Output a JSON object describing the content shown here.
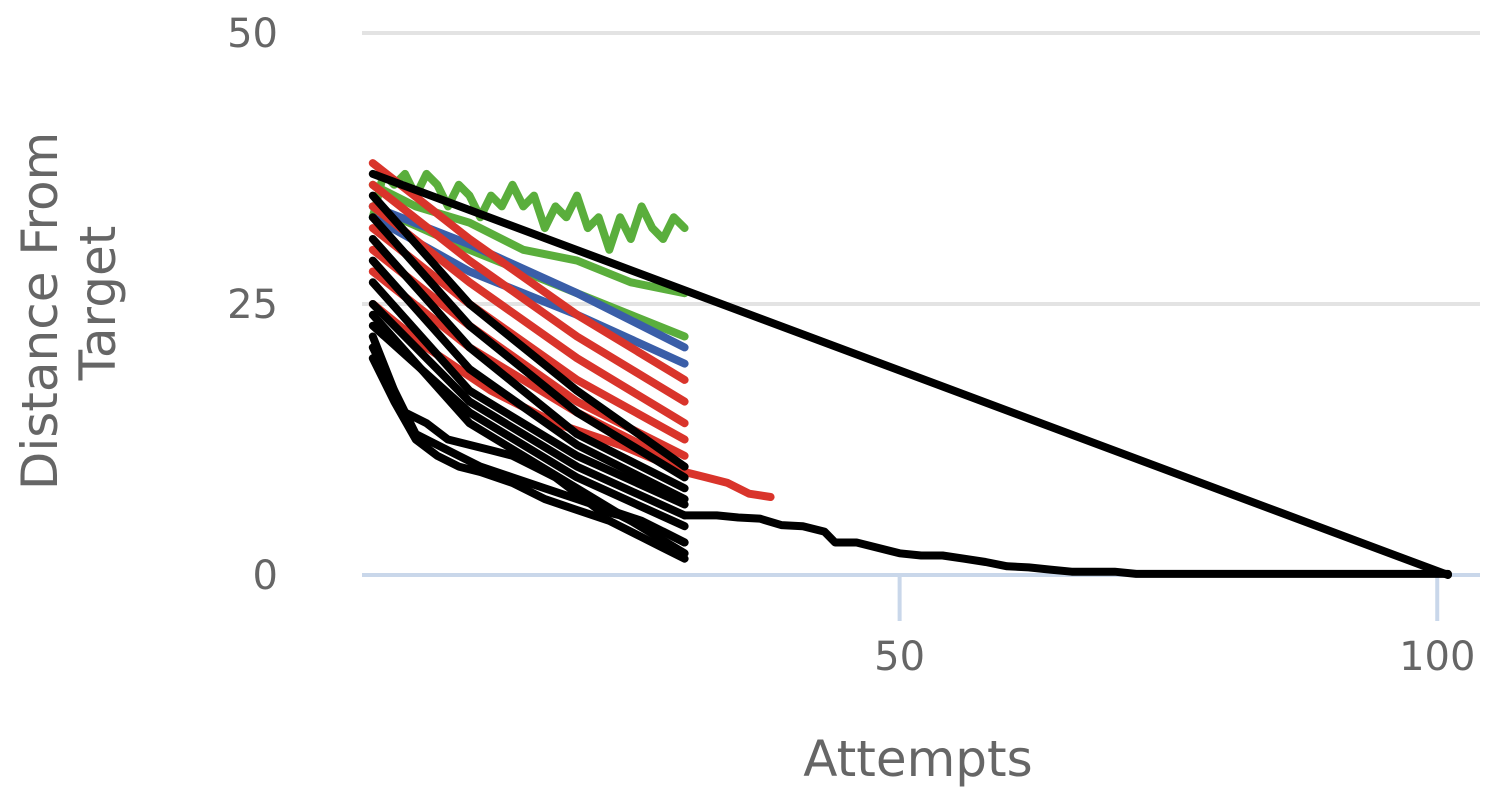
{
  "chart_data": {
    "type": "line",
    "title": "",
    "xlabel": "Attempts",
    "ylabel_lines": [
      "Distance From",
      "Target"
    ],
    "xlim": [
      0,
      101
    ],
    "ylim": [
      0,
      50
    ],
    "x_ticks": [
      50,
      100
    ],
    "x_tick_labels": [
      "50",
      "100"
    ],
    "y_ticks": [
      0,
      25,
      50
    ],
    "y_tick_labels": [
      "0",
      "25",
      "50"
    ],
    "grid": "horizontal",
    "legend": "none",
    "colors": {
      "green": "#5aae3c",
      "blue": "#3a5ea8",
      "red": "#d9342b",
      "black": "#000000",
      "grid": "#e3e3e3",
      "axis": "#c9d7ea"
    },
    "series": [
      {
        "color_key": "green",
        "x": [
          1,
          2,
          3,
          4,
          5,
          6,
          7,
          8,
          9,
          10,
          11,
          12,
          13,
          14,
          15,
          16,
          17,
          18,
          19,
          20,
          21,
          22,
          23,
          24,
          25,
          26,
          27,
          28,
          29,
          30
        ],
        "y": [
          33,
          37,
          36,
          37,
          35,
          37,
          36,
          34,
          36,
          35,
          33,
          35,
          34,
          36,
          34,
          35,
          32,
          34,
          33,
          35,
          32,
          33,
          30,
          33,
          31,
          34,
          32,
          31,
          33,
          32
        ]
      },
      {
        "color_key": "green",
        "x": [
          1,
          5,
          10,
          15,
          20,
          25,
          30
        ],
        "y": [
          36,
          34,
          32.5,
          30,
          29,
          27,
          26
        ]
      },
      {
        "color_key": "green",
        "x": [
          1,
          10,
          20,
          30
        ],
        "y": [
          34,
          30,
          26,
          22
        ]
      },
      {
        "color_key": "blue",
        "x": [
          1,
          10,
          20,
          30
        ],
        "y": [
          34,
          30.5,
          26,
          21
        ]
      },
      {
        "color_key": "blue",
        "x": [
          1,
          10,
          20,
          30
        ],
        "y": [
          33,
          28,
          24,
          19.5
        ]
      },
      {
        "color_key": "red",
        "x": [
          1,
          10,
          20,
          30
        ],
        "y": [
          38,
          31,
          24,
          18
        ]
      },
      {
        "color_key": "red",
        "x": [
          1,
          10,
          20,
          30
        ],
        "y": [
          36,
          29,
          22,
          16
        ]
      },
      {
        "color_key": "red",
        "x": [
          1,
          10,
          20,
          30
        ],
        "y": [
          34,
          27,
          20,
          14
        ]
      },
      {
        "color_key": "red",
        "x": [
          1,
          10,
          20,
          30
        ],
        "y": [
          32,
          25,
          18,
          12.5
        ]
      },
      {
        "color_key": "red",
        "x": [
          1,
          10,
          20,
          30
        ],
        "y": [
          30,
          23,
          16,
          11
        ]
      },
      {
        "color_key": "red",
        "x": [
          1,
          10,
          20,
          30
        ],
        "y": [
          28,
          21,
          15,
          10
        ]
      },
      {
        "color_key": "red",
        "x": [
          1,
          6,
          12,
          18,
          24,
          30,
          32,
          34,
          36,
          38
        ],
        "y": [
          25,
          21,
          17,
          14,
          12,
          9.5,
          9,
          8.5,
          7.5,
          7.2
        ]
      },
      {
        "color_key": "black",
        "x": [
          1,
          101
        ],
        "y": [
          37,
          0
        ]
      },
      {
        "color_key": "black",
        "x": [
          1,
          10,
          20,
          30
        ],
        "y": [
          35,
          25,
          17,
          10
        ]
      },
      {
        "color_key": "black",
        "x": [
          1,
          10,
          20,
          30
        ],
        "y": [
          33,
          23,
          15,
          9
        ]
      },
      {
        "color_key": "black",
        "x": [
          1,
          10,
          20,
          30
        ],
        "y": [
          31,
          21,
          13,
          8
        ]
      },
      {
        "color_key": "black",
        "x": [
          1,
          10,
          20,
          30
        ],
        "y": [
          29,
          19,
          12,
          7
        ]
      },
      {
        "color_key": "black",
        "x": [
          1,
          10,
          20,
          30
        ],
        "y": [
          27,
          17,
          11,
          6.5
        ]
      },
      {
        "color_key": "black",
        "x": [
          1,
          10,
          20,
          30
        ],
        "y": [
          25,
          16,
          10,
          5.5
        ]
      },
      {
        "color_key": "black",
        "x": [
          1,
          10,
          20,
          30
        ],
        "y": [
          23,
          15,
          9,
          4.5
        ]
      },
      {
        "color_key": "black",
        "x": [
          1,
          3,
          5,
          7,
          9,
          11,
          14,
          17,
          20,
          23,
          26,
          28,
          30
        ],
        "y": [
          21,
          17,
          13,
          12,
          11,
          10,
          9,
          8,
          7,
          6,
          5,
          4,
          3
        ]
      },
      {
        "color_key": "black",
        "x": [
          1,
          3,
          5,
          7,
          9,
          11,
          14,
          17,
          20,
          23,
          26,
          28,
          30
        ],
        "y": [
          20,
          16,
          12.5,
          11,
          10,
          9.5,
          8.5,
          7,
          6,
          5,
          3.5,
          2.5,
          1.5
        ]
      },
      {
        "color_key": "black",
        "x": [
          1,
          3,
          4,
          6,
          8,
          10,
          12,
          14,
          16,
          18,
          20,
          22,
          24,
          26,
          28,
          30
        ],
        "y": [
          22,
          17,
          15,
          14,
          12.5,
          12,
          11.5,
          11,
          10,
          9,
          7.5,
          6,
          5.5,
          4.5,
          4,
          3
        ]
      },
      {
        "color_key": "black",
        "x": [
          1,
          10,
          20,
          30
        ],
        "y": [
          24,
          14,
          8,
          2
        ]
      },
      {
        "color_key": "black",
        "x": [
          30,
          33,
          35,
          37,
          39,
          41,
          43,
          44,
          46,
          48,
          50,
          52,
          54,
          56,
          58,
          60,
          62,
          64,
          66,
          68,
          70,
          72,
          75,
          80,
          85,
          90,
          95,
          101
        ],
        "y": [
          5.5,
          5.5,
          5.3,
          5.2,
          4.6,
          4.5,
          4,
          3,
          3,
          2.5,
          2,
          1.8,
          1.8,
          1.5,
          1.2,
          0.8,
          0.7,
          0.5,
          0.3,
          0.3,
          0.3,
          0.1,
          0.1,
          0.1,
          0.1,
          0.1,
          0.1,
          0.1
        ]
      }
    ]
  }
}
